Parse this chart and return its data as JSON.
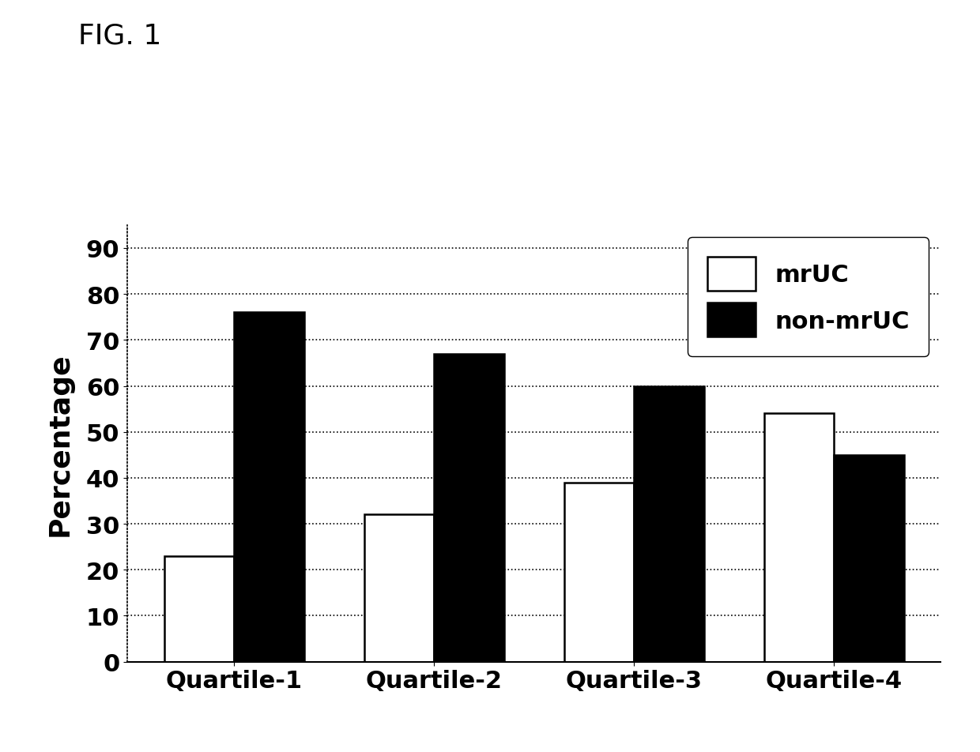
{
  "title": "FIG. 1",
  "categories": [
    "Quartile-1",
    "Quartile-2",
    "Quartile-3",
    "Quartile-4"
  ],
  "mrUC_values": [
    23,
    32,
    39,
    54
  ],
  "non_mrUC_values": [
    76,
    67,
    60,
    45
  ],
  "ylabel": "Percentage",
  "ylim": [
    0,
    95
  ],
  "yticks": [
    0,
    10,
    20,
    30,
    40,
    50,
    60,
    70,
    80,
    90
  ],
  "legend_labels": [
    "mrUC",
    "non-mrUC"
  ],
  "bar_width": 0.35,
  "mrUC_color": "#ffffff",
  "non_mrUC_color": "#000000",
  "mrUC_edgecolor": "#000000",
  "non_mrUC_edgecolor": "#000000",
  "background_color": "#ffffff",
  "title_fontsize": 26,
  "axis_label_fontsize": 26,
  "tick_fontsize": 22,
  "legend_fontsize": 22
}
